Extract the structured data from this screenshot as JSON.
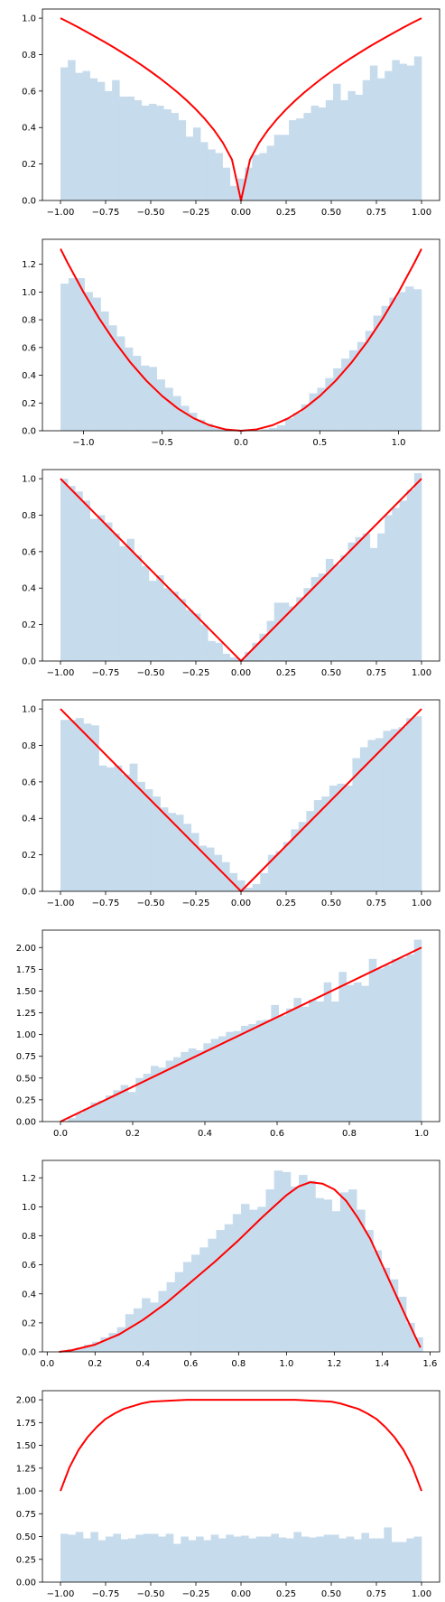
{
  "chart_data": [
    {
      "type": "bar",
      "title": "",
      "xlabel": "",
      "ylabel": "",
      "hist_range": [
        -1,
        1
      ],
      "bin_heights": [
        0.73,
        0.77,
        0.7,
        0.71,
        0.67,
        0.65,
        0.6,
        0.66,
        0.57,
        0.57,
        0.55,
        0.52,
        0.53,
        0.52,
        0.5,
        0.48,
        0.44,
        0.35,
        0.4,
        0.32,
        0.28,
        0.26,
        0.18,
        0.08,
        0.12,
        0.18,
        0.25,
        0.26,
        0.3,
        0.36,
        0.36,
        0.44,
        0.45,
        0.48,
        0.52,
        0.51,
        0.55,
        0.64,
        0.55,
        0.6,
        0.58,
        0.66,
        0.74,
        0.67,
        0.71,
        0.77,
        0.75,
        0.74,
        0.79
      ],
      "series": [
        {
          "values": [
            [
              -1,
              1
            ],
            [
              -0.95,
              0.975
            ],
            [
              -0.9,
              0.949
            ],
            [
              -0.85,
              0.922
            ],
            [
              -0.8,
              0.894
            ],
            [
              -0.75,
              0.866
            ],
            [
              -0.7,
              0.837
            ],
            [
              -0.65,
              0.806
            ],
            [
              -0.6,
              0.775
            ],
            [
              -0.55,
              0.742
            ],
            [
              -0.5,
              0.707
            ],
            [
              -0.45,
              0.671
            ],
            [
              -0.4,
              0.632
            ],
            [
              -0.35,
              0.592
            ],
            [
              -0.3,
              0.548
            ],
            [
              -0.25,
              0.5
            ],
            [
              -0.2,
              0.447
            ],
            [
              -0.15,
              0.387
            ],
            [
              -0.1,
              0.316
            ],
            [
              -0.05,
              0.224
            ],
            [
              0,
              0
            ],
            [
              0.05,
              0.224
            ],
            [
              0.1,
              0.316
            ],
            [
              0.15,
              0.387
            ],
            [
              0.2,
              0.447
            ],
            [
              0.25,
              0.5
            ],
            [
              0.3,
              0.548
            ],
            [
              0.35,
              0.592
            ],
            [
              0.4,
              0.632
            ],
            [
              0.45,
              0.671
            ],
            [
              0.5,
              0.707
            ],
            [
              0.55,
              0.742
            ],
            [
              0.6,
              0.775
            ],
            [
              0.65,
              0.806
            ],
            [
              0.7,
              0.837
            ],
            [
              0.75,
              0.866
            ],
            [
              0.8,
              0.894
            ],
            [
              0.85,
              0.922
            ],
            [
              0.9,
              0.949
            ],
            [
              0.95,
              0.975
            ],
            [
              1,
              1
            ]
          ]
        }
      ],
      "xlim": [
        -1.1,
        1.1
      ],
      "ylim": [
        0,
        1.05
      ],
      "xticks": [
        -1.0,
        -0.75,
        -0.5,
        -0.25,
        0,
        0.25,
        0.5,
        0.75,
        1.0
      ],
      "xtick_labels": [
        "−1.00",
        "−0.75",
        "−0.50",
        "−0.25",
        "0.00",
        "0.25",
        "0.50",
        "0.75",
        "1.00"
      ],
      "yticks": [
        0,
        0.2,
        0.4,
        0.6,
        0.8,
        1.0
      ],
      "ytick_labels": [
        "0.0",
        "0.2",
        "0.4",
        "0.6",
        "0.8",
        "1.0"
      ]
    },
    {
      "type": "bar",
      "title": "",
      "xlabel": "",
      "ylabel": "",
      "hist_range": [
        -1.145,
        1.145
      ],
      "bin_heights": [
        1.06,
        1.1,
        1.1,
        1.0,
        0.96,
        0.86,
        0.76,
        0.68,
        0.6,
        0.54,
        0.47,
        0.46,
        0.37,
        0.31,
        0.25,
        0.18,
        0.13,
        0.08,
        0.05,
        0.02,
        0.01,
        0.0,
        0.0,
        0.0,
        0.0,
        0.01,
        0.02,
        0.04,
        0.09,
        0.13,
        0.19,
        0.27,
        0.31,
        0.38,
        0.45,
        0.52,
        0.58,
        0.64,
        0.72,
        0.83,
        0.9,
        0.96,
        1.0,
        1.04,
        1.02
      ],
      "series": [
        {
          "values": [
            [
              -1.145,
              1.311
            ],
            [
              -1.1,
              1.21
            ],
            [
              -1.0,
              1.0
            ],
            [
              -0.9,
              0.81
            ],
            [
              -0.8,
              0.64
            ],
            [
              -0.7,
              0.49
            ],
            [
              -0.6,
              0.36
            ],
            [
              -0.5,
              0.25
            ],
            [
              -0.4,
              0.16
            ],
            [
              -0.3,
              0.09
            ],
            [
              -0.2,
              0.04
            ],
            [
              -0.1,
              0.01
            ],
            [
              0,
              0
            ],
            [
              0.1,
              0.01
            ],
            [
              0.2,
              0.04
            ],
            [
              0.3,
              0.09
            ],
            [
              0.4,
              0.16
            ],
            [
              0.5,
              0.25
            ],
            [
              0.6,
              0.36
            ],
            [
              0.7,
              0.49
            ],
            [
              0.8,
              0.64
            ],
            [
              0.9,
              0.81
            ],
            [
              1.0,
              1.0
            ],
            [
              1.1,
              1.21
            ],
            [
              1.145,
              1.311
            ]
          ]
        }
      ],
      "xlim": [
        -1.26,
        1.26
      ],
      "ylim": [
        0,
        1.38
      ],
      "xticks": [
        -1.0,
        -0.5,
        0,
        0.5,
        1.0
      ],
      "xtick_labels": [
        "−1.0",
        "−0.5",
        "0.0",
        "0.5",
        "1.0"
      ],
      "yticks": [
        0,
        0.2,
        0.4,
        0.6,
        0.8,
        1.0,
        1.2
      ],
      "ytick_labels": [
        "0.0",
        "0.2",
        "0.4",
        "0.6",
        "0.8",
        "1.0",
        "1.2"
      ]
    },
    {
      "type": "bar",
      "title": "",
      "xlabel": "",
      "ylabel": "",
      "hist_range": [
        -1,
        1
      ],
      "bin_heights": [
        1.0,
        0.96,
        0.93,
        0.88,
        0.78,
        0.8,
        0.76,
        0.7,
        0.63,
        0.67,
        0.58,
        0.52,
        0.44,
        0.47,
        0.4,
        0.38,
        0.34,
        0.28,
        0.26,
        0.2,
        0.11,
        0.1,
        0.04,
        0.02,
        0.01,
        0.05,
        0.1,
        0.15,
        0.22,
        0.32,
        0.32,
        0.3,
        0.35,
        0.4,
        0.46,
        0.48,
        0.56,
        0.53,
        0.58,
        0.65,
        0.68,
        0.7,
        0.62,
        0.7,
        0.8,
        0.84,
        0.88,
        0.94,
        1.03
      ],
      "series": [
        {
          "values": [
            [
              -1,
              1
            ],
            [
              0,
              0
            ],
            [
              1,
              1
            ]
          ]
        }
      ],
      "xlim": [
        -1.1,
        1.1
      ],
      "ylim": [
        0,
        1.05
      ],
      "xticks": [
        -1.0,
        -0.75,
        -0.5,
        -0.25,
        0,
        0.25,
        0.5,
        0.75,
        1.0
      ],
      "xtick_labels": [
        "−1.00",
        "−0.75",
        "−0.50",
        "−0.25",
        "0.00",
        "0.25",
        "0.50",
        "0.75",
        "1.00"
      ],
      "yticks": [
        0,
        0.2,
        0.4,
        0.6,
        0.8,
        1.0
      ],
      "ytick_labels": [
        "0.0",
        "0.2",
        "0.4",
        "0.6",
        "0.8",
        "1.0"
      ]
    },
    {
      "type": "bar",
      "title": "",
      "xlabel": "",
      "ylabel": "",
      "hist_range": [
        -1,
        1
      ],
      "bin_heights": [
        0.94,
        0.94,
        0.95,
        0.92,
        0.91,
        0.69,
        0.68,
        0.69,
        0.64,
        0.7,
        0.6,
        0.56,
        0.52,
        0.46,
        0.43,
        0.42,
        0.37,
        0.32,
        0.25,
        0.24,
        0.2,
        0.16,
        0.1,
        0.06,
        0.02,
        0.04,
        0.1,
        0.2,
        0.22,
        0.27,
        0.34,
        0.38,
        0.44,
        0.5,
        0.52,
        0.58,
        0.59,
        0.58,
        0.73,
        0.79,
        0.83,
        0.84,
        0.88,
        0.89,
        0.9,
        0.95,
        0.96
      ],
      "series": [
        {
          "values": [
            [
              -1,
              1
            ],
            [
              0,
              0
            ],
            [
              1,
              1
            ]
          ]
        }
      ],
      "xlim": [
        -1.1,
        1.1
      ],
      "ylim": [
        0,
        1.05
      ],
      "xticks": [
        -1.0,
        -0.75,
        -0.5,
        -0.25,
        0,
        0.25,
        0.5,
        0.75,
        1.0
      ],
      "xtick_labels": [
        "−1.00",
        "−0.75",
        "−0.50",
        "−0.25",
        "0.00",
        "0.25",
        "0.50",
        "0.75",
        "1.00"
      ],
      "yticks": [
        0,
        0.2,
        0.4,
        0.6,
        0.8,
        1.0
      ],
      "ytick_labels": [
        "0.0",
        "0.2",
        "0.4",
        "0.6",
        "0.8",
        "1.0"
      ]
    },
    {
      "type": "bar",
      "title": "",
      "xlabel": "",
      "ylabel": "",
      "hist_range": [
        0,
        1
      ],
      "bin_heights": [
        0.0,
        0.04,
        0.1,
        0.15,
        0.22,
        0.24,
        0.3,
        0.36,
        0.42,
        0.34,
        0.5,
        0.55,
        0.64,
        0.62,
        0.7,
        0.74,
        0.8,
        0.84,
        0.82,
        0.9,
        0.95,
        0.98,
        1.03,
        1.04,
        1.1,
        1.12,
        1.16,
        1.17,
        1.34,
        1.22,
        1.3,
        1.42,
        1.32,
        1.4,
        1.38,
        1.6,
        1.38,
        1.72,
        1.57,
        1.6,
        1.56,
        1.87,
        1.76,
        1.8,
        1.87,
        1.88,
        1.92,
        2.09
      ],
      "series": [
        {
          "values": [
            [
              0,
              0
            ],
            [
              1,
              2
            ]
          ]
        }
      ],
      "xlim": [
        -0.05,
        1.05
      ],
      "ylim": [
        0,
        2.2
      ],
      "xticks": [
        0,
        0.2,
        0.4,
        0.6,
        0.8,
        1.0
      ],
      "xtick_labels": [
        "0.0",
        "0.2",
        "0.4",
        "0.6",
        "0.8",
        "1.0"
      ],
      "yticks": [
        0,
        0.25,
        0.5,
        0.75,
        1.0,
        1.25,
        1.5,
        1.75,
        2.0
      ],
      "ytick_labels": [
        "0.00",
        "0.25",
        "0.50",
        "0.75",
        "1.00",
        "1.25",
        "1.50",
        "1.75",
        "2.00"
      ]
    },
    {
      "type": "bar",
      "title": "",
      "xlabel": "",
      "ylabel": "",
      "hist_range": [
        0.05,
        1.57
      ],
      "bin_heights": [
        0.0,
        0.02,
        0.03,
        0.05,
        0.07,
        0.1,
        0.13,
        0.17,
        0.26,
        0.3,
        0.37,
        0.34,
        0.42,
        0.48,
        0.55,
        0.62,
        0.67,
        0.72,
        0.78,
        0.84,
        0.88,
        0.95,
        1.02,
        0.98,
        1.0,
        1.12,
        1.25,
        1.24,
        1.14,
        1.22,
        1.18,
        1.06,
        1.05,
        0.97,
        1.1,
        1.12,
        0.98,
        0.84,
        0.7,
        0.58,
        0.5,
        0.38,
        0.2,
        0.1
      ],
      "series": [
        {
          "values": [
            [
              0.05,
              0.0
            ],
            [
              0.1,
              0.01
            ],
            [
              0.2,
              0.05
            ],
            [
              0.3,
              0.12
            ],
            [
              0.4,
              0.22
            ],
            [
              0.5,
              0.34
            ],
            [
              0.6,
              0.48
            ],
            [
              0.7,
              0.62
            ],
            [
              0.8,
              0.77
            ],
            [
              0.9,
              0.93
            ],
            [
              1.0,
              1.08
            ],
            [
              1.05,
              1.14
            ],
            [
              1.1,
              1.17
            ],
            [
              1.15,
              1.16
            ],
            [
              1.2,
              1.12
            ],
            [
              1.25,
              1.04
            ],
            [
              1.3,
              0.92
            ],
            [
              1.35,
              0.78
            ],
            [
              1.4,
              0.6
            ],
            [
              1.45,
              0.42
            ],
            [
              1.5,
              0.24
            ],
            [
              1.56,
              0.03
            ]
          ]
        }
      ],
      "xlim": [
        -0.02,
        1.64
      ],
      "ylim": [
        0,
        1.32
      ],
      "xticks": [
        0,
        0.2,
        0.4,
        0.6,
        0.8,
        1.0,
        1.2,
        1.4,
        1.6
      ],
      "xtick_labels": [
        "0.0",
        "0.2",
        "0.4",
        "0.6",
        "0.8",
        "1.0",
        "1.2",
        "1.4",
        "1.6"
      ],
      "yticks": [
        0,
        0.2,
        0.4,
        0.6,
        0.8,
        1.0,
        1.2
      ],
      "ytick_labels": [
        "0.0",
        "0.2",
        "0.4",
        "0.6",
        "0.8",
        "1.0",
        "1.2"
      ]
    },
    {
      "type": "bar",
      "title": "",
      "xlabel": "",
      "ylabel": "",
      "hist_range": [
        -1,
        1
      ],
      "bin_heights": [
        0.53,
        0.52,
        0.55,
        0.48,
        0.55,
        0.46,
        0.5,
        0.53,
        0.47,
        0.48,
        0.52,
        0.53,
        0.53,
        0.5,
        0.53,
        0.42,
        0.5,
        0.46,
        0.5,
        0.46,
        0.52,
        0.48,
        0.52,
        0.5,
        0.51,
        0.48,
        0.5,
        0.5,
        0.53,
        0.49,
        0.48,
        0.55,
        0.5,
        0.49,
        0.5,
        0.52,
        0.52,
        0.48,
        0.5,
        0.47,
        0.54,
        0.48,
        0.48,
        0.6,
        0.44,
        0.44,
        0.48,
        0.5
      ],
      "series": [
        {
          "values": [
            [
              -1,
              1.0
            ],
            [
              -0.95,
              1.26
            ],
            [
              -0.9,
              1.45
            ],
            [
              -0.85,
              1.59
            ],
            [
              -0.8,
              1.7
            ],
            [
              -0.75,
              1.79
            ],
            [
              -0.7,
              1.85
            ],
            [
              -0.65,
              1.9
            ],
            [
              -0.6,
              1.93
            ],
            [
              -0.55,
              1.96
            ],
            [
              -0.5,
              1.98
            ],
            [
              -0.4,
              1.99
            ],
            [
              -0.3,
              2.0
            ],
            [
              -0.2,
              2.0
            ],
            [
              0,
              2.0
            ],
            [
              0.2,
              2.0
            ],
            [
              0.3,
              2.0
            ],
            [
              0.4,
              1.99
            ],
            [
              0.5,
              1.98
            ],
            [
              0.55,
              1.96
            ],
            [
              0.6,
              1.93
            ],
            [
              0.65,
              1.9
            ],
            [
              0.7,
              1.85
            ],
            [
              0.75,
              1.79
            ],
            [
              0.8,
              1.7
            ],
            [
              0.85,
              1.59
            ],
            [
              0.9,
              1.45
            ],
            [
              0.95,
              1.26
            ],
            [
              1,
              1.0
            ]
          ]
        }
      ],
      "xlim": [
        -1.1,
        1.1
      ],
      "ylim": [
        0,
        2.1
      ],
      "xticks": [
        -1.0,
        -0.75,
        -0.5,
        -0.25,
        0,
        0.25,
        0.5,
        0.75,
        1.0
      ],
      "xtick_labels": [
        "−1.00",
        "−0.75",
        "−0.50",
        "−0.25",
        "0.00",
        "0.25",
        "0.50",
        "0.75",
        "1.00"
      ],
      "yticks": [
        0,
        0.25,
        0.5,
        0.75,
        1.0,
        1.25,
        1.5,
        1.75,
        2.0
      ],
      "ytick_labels": [
        "0.00",
        "0.25",
        "0.50",
        "0.75",
        "1.00",
        "1.25",
        "1.50",
        "1.75",
        "2.00"
      ]
    }
  ],
  "colors": {
    "histogram": "#c6dbec",
    "curve": "#ff0000",
    "axes": "#000000"
  }
}
